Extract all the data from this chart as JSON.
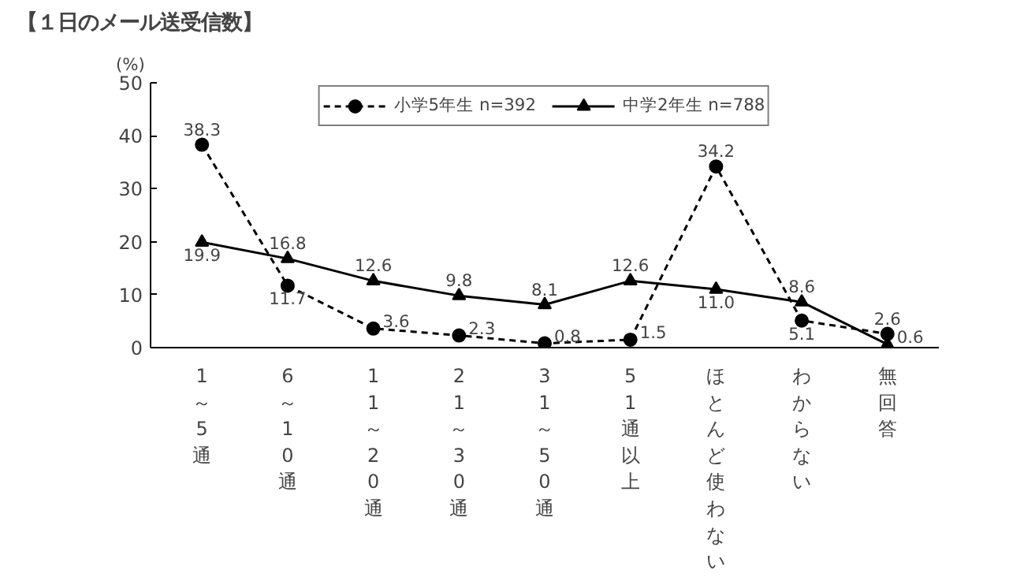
{
  "chart_data": {
    "type": "line",
    "title": "【１日のメール送受信数】",
    "ylabel": "(%)",
    "categories": [
      "1～5通",
      "6～10通",
      "11～20通",
      "21～30通",
      "31～50通",
      "51通以上",
      "ほとんど使わない",
      "わからない",
      "無回答"
    ],
    "series": [
      {
        "name": "小学5年生 n=392",
        "color": "#000000",
        "marker": "circle",
        "line_style": "dashed",
        "values": [
          38.3,
          11.7,
          3.6,
          2.3,
          0.8,
          1.5,
          34.2,
          5.1,
          2.6
        ],
        "value_labels": [
          "38.3",
          "11.7",
          "3.6",
          "2.3",
          "0.8",
          "1.5",
          "34.2",
          "5.1",
          "2.6"
        ]
      },
      {
        "name": "中学2年生 n=788",
        "color": "#000000",
        "marker": "triangle",
        "line_style": "solid",
        "values": [
          19.9,
          16.8,
          12.6,
          9.8,
          8.1,
          12.6,
          11.0,
          8.6,
          0.6
        ],
        "value_labels": [
          "19.9",
          "16.8",
          "12.6",
          "9.8",
          "8.1",
          "12.6",
          "11.0",
          "8.6",
          "0.6"
        ]
      }
    ],
    "ylim": [
      0,
      50
    ],
    "yticks": [
      0,
      10,
      20,
      30,
      40,
      50
    ],
    "grid": false,
    "legend": "top"
  }
}
